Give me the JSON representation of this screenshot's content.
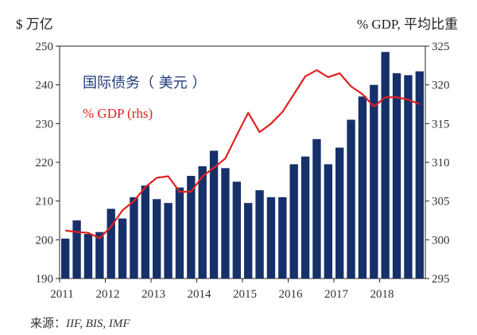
{
  "chart_data": {
    "type": "bar+line",
    "left_axis_title": "$ 万亿",
    "right_axis_title": "% GDP, 平均比重",
    "left_ylim": [
      190,
      250
    ],
    "left_ticks": [
      190,
      200,
      210,
      220,
      230,
      240,
      250
    ],
    "right_ylim": [
      295,
      325
    ],
    "right_ticks": [
      295,
      300,
      305,
      310,
      315,
      320,
      325
    ],
    "x_labels": [
      "2011",
      "2012",
      "2013",
      "2014",
      "2015",
      "2016",
      "2017",
      "2018"
    ],
    "series": [
      {
        "name": "国际债务（ 美元 ）",
        "type": "bar",
        "axis": "left",
        "color": "#16306a",
        "values": [
          200.3,
          205,
          201.5,
          202,
          208,
          205.5,
          211,
          214,
          210.5,
          209.5,
          213.5,
          216.5,
          219,
          223,
          218.5,
          215,
          209.5,
          212.8,
          211,
          211,
          219.5,
          221.5,
          226,
          219.5,
          223.8,
          231,
          237,
          240,
          248.5,
          243,
          242.5,
          243.5
        ]
      },
      {
        "name": "% GDP (rhs)",
        "type": "line",
        "axis": "right",
        "color": "#e02020",
        "values": [
          301.2,
          301,
          300.9,
          300.2,
          301.7,
          303.8,
          305,
          306.8,
          308,
          308.2,
          306.2,
          306.2,
          308.2,
          309.3,
          310.5,
          313.5,
          316.4,
          313.9,
          315,
          316.5,
          318.8,
          321.1,
          321.9,
          321,
          321.5,
          319.8,
          318.8,
          317.2,
          318.4,
          318.4,
          318.1,
          317.5
        ]
      }
    ],
    "legend": {
      "debt_label": "国际债务（ 美元 ）",
      "gdp_label": "% GDP (rhs)"
    }
  },
  "source": {
    "prefix": "来源：",
    "names": "IIF, BIS, IMF"
  }
}
